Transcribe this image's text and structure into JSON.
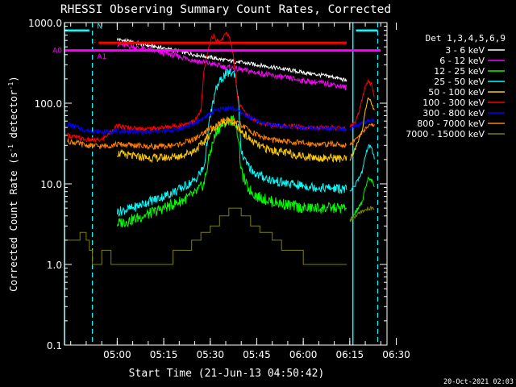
{
  "chart_data": {
    "type": "line",
    "title": "RHESSI Observing Summary Count Rates, Corrected",
    "xlabel": "Start Time (21-Jun-13 04:50:42)",
    "ylabel_main": "Corrected Count Rate (s",
    "ylabel_sup1": "-1",
    "ylabel_mid": " detector",
    "ylabel_sup2": "-1",
    "ylabel_end": ")",
    "yscale": "log",
    "ylim": [
      0.1,
      1000
    ],
    "xlim_min": [
      -7,
      95
    ],
    "x_ticks": [
      {
        "min": 10,
        "label": "05:00"
      },
      {
        "min": 25,
        "label": "05:15"
      },
      {
        "min": 40,
        "label": "05:30"
      },
      {
        "min": 55,
        "label": "05:45"
      },
      {
        "min": 70,
        "label": "06:00"
      },
      {
        "min": 85,
        "label": "06:15"
      },
      {
        "min": 100,
        "label": "06:30"
      }
    ],
    "y_ticks": [
      {
        "value": 1000,
        "label": "1000.0"
      },
      {
        "value": 100,
        "label": "100.0"
      },
      {
        "value": 10,
        "label": "10.0"
      },
      {
        "value": 1,
        "label": "1.0"
      },
      {
        "value": 0.1,
        "label": "0.1"
      }
    ],
    "legend_title": "Det 1,3,4,5,6,9",
    "legend_position": "right",
    "series": [
      {
        "name": "3 - 6 keV",
        "color": "#ffffff",
        "points": [
          [
            10,
            620
          ],
          [
            15,
            570
          ],
          [
            20,
            520
          ],
          [
            25,
            480
          ],
          [
            30,
            440
          ],
          [
            35,
            400
          ],
          [
            40,
            370
          ],
          [
            45,
            340
          ],
          [
            50,
            320
          ],
          [
            55,
            300
          ],
          [
            60,
            280
          ],
          [
            65,
            260
          ],
          [
            70,
            240
          ],
          [
            75,
            225
          ],
          [
            80,
            210
          ],
          [
            84,
            190
          ]
        ]
      },
      {
        "name": "6 - 12 keV",
        "color": "#ff00ff",
        "points": [
          [
            10,
            540
          ],
          [
            15,
            500
          ],
          [
            20,
            460
          ],
          [
            25,
            420
          ],
          [
            30,
            380
          ],
          [
            35,
            340
          ],
          [
            40,
            310
          ],
          [
            45,
            280
          ],
          [
            50,
            260
          ],
          [
            55,
            240
          ],
          [
            60,
            220
          ],
          [
            65,
            205
          ],
          [
            70,
            190
          ],
          [
            75,
            180
          ],
          [
            80,
            170
          ],
          [
            84,
            155
          ]
        ]
      },
      {
        "name": "12 - 25 keV",
        "color": "#00ff00",
        "points": [
          [
            10,
            3.2
          ],
          [
            15,
            3.6
          ],
          [
            20,
            4.2
          ],
          [
            25,
            5.0
          ],
          [
            30,
            6.0
          ],
          [
            35,
            7.5
          ],
          [
            38,
            10
          ],
          [
            40,
            25
          ],
          [
            42,
            45
          ],
          [
            44,
            55
          ],
          [
            46,
            62
          ],
          [
            48,
            60
          ],
          [
            49,
            40
          ],
          [
            50,
            14
          ],
          [
            52,
            9
          ],
          [
            55,
            7
          ],
          [
            60,
            6
          ],
          [
            65,
            5.5
          ],
          [
            70,
            5.0
          ],
          [
            75,
            5.0
          ],
          [
            80,
            5.0
          ],
          [
            84,
            5.0
          ]
        ]
      },
      {
        "name": "25 - 50 keV",
        "color": "#00ffff",
        "points": [
          [
            10,
            4.5
          ],
          [
            15,
            5.0
          ],
          [
            20,
            6.0
          ],
          [
            25,
            7.0
          ],
          [
            30,
            8.5
          ],
          [
            35,
            11
          ],
          [
            38,
            16
          ],
          [
            40,
            70
          ],
          [
            42,
            155
          ],
          [
            44,
            210
          ],
          [
            46,
            240
          ],
          [
            48,
            235
          ],
          [
            49,
            120
          ],
          [
            50,
            24
          ],
          [
            52,
            17
          ],
          [
            55,
            13
          ],
          [
            60,
            11
          ],
          [
            65,
            10
          ],
          [
            70,
            9.5
          ],
          [
            75,
            9.0
          ],
          [
            80,
            8.8
          ],
          [
            84,
            8.5
          ]
        ]
      },
      {
        "name": "50 - 100 keV",
        "color": "#ffcc00",
        "points": [
          [
            10,
            24
          ],
          [
            15,
            22
          ],
          [
            20,
            21
          ],
          [
            25,
            21
          ],
          [
            30,
            22
          ],
          [
            35,
            26
          ],
          [
            38,
            33
          ],
          [
            41,
            48
          ],
          [
            44,
            58
          ],
          [
            46,
            60
          ],
          [
            48,
            55
          ],
          [
            50,
            45
          ],
          [
            53,
            35
          ],
          [
            56,
            29
          ],
          [
            60,
            26
          ],
          [
            65,
            24
          ],
          [
            70,
            22
          ],
          [
            75,
            21
          ],
          [
            80,
            21
          ],
          [
            84,
            20
          ]
        ]
      },
      {
        "name": "100 - 300 keV",
        "color": "#ff0000",
        "points": [
          [
            -6,
            40
          ],
          [
            0,
            35
          ],
          [
            5,
            35
          ],
          [
            10,
            52
          ],
          [
            15,
            49
          ],
          [
            20,
            48
          ],
          [
            25,
            50
          ],
          [
            30,
            53
          ],
          [
            35,
            60
          ],
          [
            37,
            80
          ],
          [
            38,
            250
          ],
          [
            40,
            600
          ],
          [
            41,
            690
          ],
          [
            42,
            600
          ],
          [
            43,
            580
          ],
          [
            44,
            650
          ],
          [
            45,
            720
          ],
          [
            46,
            700
          ],
          [
            47,
            500
          ],
          [
            48,
            250
          ],
          [
            49,
            100
          ],
          [
            52,
            70
          ],
          [
            56,
            58
          ],
          [
            60,
            53
          ],
          [
            65,
            52
          ],
          [
            70,
            50
          ],
          [
            75,
            50
          ],
          [
            80,
            50
          ],
          [
            84,
            48
          ]
        ]
      },
      {
        "name": "300 - 800 keV",
        "color": "#0000ff",
        "points": [
          [
            -6,
            55
          ],
          [
            0,
            46
          ],
          [
            5,
            44
          ],
          [
            10,
            45
          ],
          [
            15,
            44
          ],
          [
            20,
            44
          ],
          [
            25,
            45
          ],
          [
            30,
            48
          ],
          [
            35,
            56
          ],
          [
            38,
            66
          ],
          [
            41,
            78
          ],
          [
            44,
            86
          ],
          [
            46,
            88
          ],
          [
            48,
            84
          ],
          [
            50,
            76
          ],
          [
            53,
            66
          ],
          [
            56,
            58
          ],
          [
            60,
            54
          ],
          [
            65,
            51
          ],
          [
            70,
            50
          ],
          [
            75,
            49
          ],
          [
            80,
            49
          ],
          [
            84,
            48
          ]
        ]
      },
      {
        "name": "800 - 7000 keV",
        "color": "#ff8000",
        "points": [
          [
            -6,
            34
          ],
          [
            0,
            30
          ],
          [
            5,
            29
          ],
          [
            10,
            31
          ],
          [
            15,
            30
          ],
          [
            20,
            29
          ],
          [
            25,
            29
          ],
          [
            30,
            31
          ],
          [
            35,
            36
          ],
          [
            38,
            43
          ],
          [
            41,
            52
          ],
          [
            44,
            60
          ],
          [
            46,
            62
          ],
          [
            48,
            59
          ],
          [
            50,
            54
          ],
          [
            53,
            45
          ],
          [
            56,
            39
          ],
          [
            60,
            35
          ],
          [
            65,
            33
          ],
          [
            70,
            32
          ],
          [
            75,
            31
          ],
          [
            80,
            31
          ],
          [
            84,
            30
          ]
        ]
      },
      {
        "name": "7000 - 15000 keV",
        "color": "#808000",
        "points": [
          [
            -6,
            2.0
          ],
          [
            -2,
            2.5
          ],
          [
            0,
            2.0
          ],
          [
            1,
            1.5
          ],
          [
            2,
            1.0
          ],
          [
            5,
            1.5
          ],
          [
            8,
            1.0
          ],
          [
            10,
            1.0
          ],
          [
            15,
            1.0
          ],
          [
            20,
            1.0
          ],
          [
            25,
            1.0
          ],
          [
            28,
            1.5
          ],
          [
            31,
            1.5
          ],
          [
            34,
            2.0
          ],
          [
            37,
            2.5
          ],
          [
            40,
            3.0
          ],
          [
            43,
            4.0
          ],
          [
            46,
            5.0
          ],
          [
            48,
            5.0
          ],
          [
            50,
            4.0
          ],
          [
            53,
            3.0
          ],
          [
            56,
            2.5
          ],
          [
            60,
            2.0
          ],
          [
            63,
            1.5
          ],
          [
            66,
            1.5
          ],
          [
            70,
            1.0
          ],
          [
            74,
            1.0
          ],
          [
            78,
            1.0
          ],
          [
            82,
            1.0
          ],
          [
            84,
            1.0
          ]
        ]
      }
    ],
    "late_series": [
      {
        "color": "#ff0000",
        "points": [
          [
            85,
            50
          ],
          [
            87,
            60
          ],
          [
            88,
            80
          ],
          [
            90,
            160
          ],
          [
            91,
            190
          ],
          [
            92,
            170
          ],
          [
            93,
            120
          ]
        ]
      },
      {
        "color": "#0000ff",
        "points": [
          [
            85,
            48
          ],
          [
            87,
            52
          ],
          [
            89,
            56
          ],
          [
            91,
            60
          ],
          [
            93,
            62
          ]
        ]
      },
      {
        "color": "#ff8000",
        "points": [
          [
            85,
            30
          ],
          [
            87,
            36
          ],
          [
            89,
            44
          ],
          [
            91,
            52
          ],
          [
            93,
            55
          ]
        ]
      },
      {
        "color": "#ffcc00",
        "points": [
          [
            85,
            20
          ],
          [
            87,
            28
          ],
          [
            89,
            45
          ],
          [
            90,
            80
          ],
          [
            91,
            120
          ],
          [
            92,
            100
          ],
          [
            93,
            80
          ]
        ]
      },
      {
        "color": "#00ffff",
        "points": [
          [
            85,
            8
          ],
          [
            87,
            10
          ],
          [
            89,
            14
          ],
          [
            90,
            22
          ],
          [
            91,
            30
          ],
          [
            92,
            28
          ],
          [
            93,
            20
          ]
        ]
      },
      {
        "color": "#00ff00",
        "points": [
          [
            85,
            3.5
          ],
          [
            87,
            4.5
          ],
          [
            89,
            6
          ],
          [
            90,
            9
          ],
          [
            91,
            12
          ],
          [
            92,
            11
          ],
          [
            93,
            9
          ]
        ]
      },
      {
        "color": "#808000",
        "points": [
          [
            85,
            3.5
          ],
          [
            87,
            4.0
          ],
          [
            89,
            4.5
          ],
          [
            91,
            5.0
          ],
          [
            93,
            5.0
          ]
        ]
      }
    ],
    "eclipse_bars_color": "#00ffff",
    "eclipse_bars": [
      {
        "x_start": -7,
        "x_end": 1,
        "value": 800
      },
      {
        "x_start": 87,
        "x_end": 94,
        "value": 800
      }
    ],
    "saa_lines": [
      {
        "x": 2
      },
      {
        "x": 94
      }
    ],
    "solid_lines": [
      {
        "x": -7
      },
      {
        "x": 86
      }
    ],
    "flag_lines": [
      {
        "label": "F",
        "color": "#ff0000",
        "x_start": 4,
        "x_end": 84,
        "value": 560
      },
      {
        "label": "A0",
        "color": "#ff00ff",
        "x_start": -7,
        "x_end": 95,
        "value": 450
      }
    ],
    "flag_letters": [
      {
        "label": "N",
        "color": "#00ffff",
        "x": 3.5,
        "value": 900
      },
      {
        "label": "A1",
        "color": "#ff00ff",
        "x": 3.5,
        "value": 380
      }
    ]
  },
  "footer": {
    "timestamp": "20-Oct-2021 02:03"
  }
}
